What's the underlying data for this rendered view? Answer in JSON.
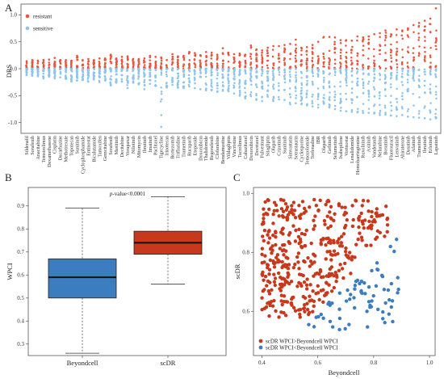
{
  "panels": {
    "a": "A",
    "b": "B",
    "c": "C"
  },
  "chart_data": [
    {
      "panel": "A",
      "type": "scatter",
      "ylabel": "DRS",
      "ylim": [
        -1.2,
        1.2
      ],
      "yticks": [
        -1.0,
        -0.5,
        0.0,
        0.5,
        1.0
      ],
      "legend": {
        "placement": "top-left",
        "entries": [
          {
            "name": "resistant",
            "color": "#e8553c"
          },
          {
            "name": "sensitive",
            "color": "#8cc4ec"
          }
        ]
      },
      "categories": [
        "Sildenafil",
        "Sorafenib",
        "Anacitabine",
        "Temsirolimus",
        "Dexamethasone",
        "Cisplatin",
        "Dacarbazine",
        "Methotrexate",
        "Topotecan",
        "Sunitinib",
        "Cyclophosphamide",
        "Entinostat",
        "Bicalutamide",
        "Tamoxifen",
        "Gemcitabine",
        "Sorafenib",
        "Masitinib",
        "Decitabine",
        "Vorapaxar",
        "Nilotinib",
        "Mitomycin",
        "Ibrutinib",
        "Imatinib",
        "Paclitaxel",
        "Tigecycline",
        "Irinotecan",
        "Bortezomib",
        "Trifluridine",
        "Trametinib",
        "Rucaparib",
        "Etoposide",
        "Doxorubicin",
        "Thalidomide",
        "Regorafenib",
        "Clofarabine",
        "Bendamustine",
        "Vildagliptin",
        "Vincristine",
        "Tacrolimus",
        "Cabazitaxel",
        "Doxorubicin",
        "Docetaxel",
        "Fulvestrant",
        "Sitagliptin",
        "Olaparib",
        "Crizotinib",
        "Sunitinib",
        "Simvastatin",
        "Sotrastaurin",
        "Cyclosporine",
        "Temozolomide",
        "Terfenadine",
        "IBR",
        "Olaparib",
        "Gefitinib",
        "Selumetinib",
        "Ixabepilone",
        "Vorinostat",
        "Lenalidomide",
        "Homoharringtonine",
        "Ruxolitinib",
        "Axitinib",
        "Vandetanib",
        "Nelarabine",
        "Bosutinib",
        "Fluorouracil",
        "Lenvatinib",
        "Abiraterone",
        "Dasatinib",
        "Afatinib",
        "Trametinib",
        "Ibrutinib",
        "Erlotinib",
        "Lapatinib"
      ],
      "series": [
        {
          "name": "resistant",
          "color": "#e8553c",
          "range_max": [
            0.14,
            0.16,
            0.15,
            0.16,
            0.17,
            0.2,
            0.16,
            0.16,
            0.15,
            0.24,
            0.16,
            0.18,
            0.16,
            0.19,
            0.19,
            0.26,
            0.19,
            0.22,
            0.23,
            0.18,
            0.18,
            0.19,
            0.24,
            0.22,
            0.21,
            0.16,
            0.27,
            0.23,
            0.24,
            0.31,
            0.29,
            0.25,
            0.31,
            0.3,
            0.26,
            0.38,
            0.3,
            0.27,
            0.28,
            0.26,
            0.43,
            0.36,
            0.34,
            0.39,
            0.42,
            0.42,
            0.44,
            0.46,
            0.54,
            0.39,
            0.4,
            0.44,
            0.5,
            0.59,
            0.59,
            0.58,
            0.53,
            0.53,
            0.52,
            0.6,
            0.58,
            0.6,
            0.64,
            0.66,
            0.71,
            0.64,
            0.73,
            0.71,
            0.75,
            0.81,
            0.85,
            0.89,
            0.93,
            1.12
          ]
        },
        {
          "name": "sensitive",
          "color": "#8cc4ec",
          "range_min": [
            -0.12,
            -0.13,
            -0.14,
            -0.18,
            -0.15,
            -0.18,
            -0.16,
            -0.19,
            -0.24,
            -0.22,
            -0.21,
            -0.24,
            -0.2,
            -0.25,
            -0.22,
            -0.31,
            -0.26,
            -0.24,
            -0.36,
            -0.26,
            -0.29,
            -0.38,
            -0.28,
            -0.32,
            -1.08,
            -0.35,
            -0.3,
            -0.35,
            -0.36,
            -0.33,
            -0.36,
            -0.38,
            -0.4,
            -0.4,
            -0.43,
            -0.41,
            -0.42,
            -0.46,
            -0.5,
            -0.55,
            -0.51,
            -0.58,
            -0.6,
            -0.52,
            -0.6,
            -0.57,
            -0.58,
            -0.66,
            -0.64,
            -0.66,
            -0.68,
            -0.7,
            -0.72,
            -0.65,
            -0.72,
            -0.75,
            -0.78,
            -0.79,
            -0.8,
            -0.81,
            -0.82,
            -0.82,
            -0.83,
            -0.86,
            -0.85,
            -0.87,
            -0.88,
            -0.86,
            -0.89,
            -0.9,
            -0.91,
            -0.92,
            -0.94,
            -0.92
          ]
        }
      ]
    },
    {
      "panel": "B",
      "type": "box",
      "annotation_prefix": "p",
      "annotation_suffix": "-value<0.0001",
      "ylabel": "WPCI",
      "xlabel": "",
      "ylim": [
        0.25,
        0.98
      ],
      "yticks": [
        0.3,
        0.4,
        0.5,
        0.6,
        0.7,
        0.8,
        0.9
      ],
      "categories": [
        "Beyondcell",
        "scDR"
      ],
      "boxes": [
        {
          "name": "Beyondcell",
          "color": "#3b7dbf",
          "whisker_low": 0.26,
          "q1": 0.5,
          "median": 0.59,
          "q3": 0.67,
          "whisker_high": 0.89
        },
        {
          "name": "scDR",
          "color": "#c8381b",
          "whisker_low": 0.56,
          "q1": 0.69,
          "median": 0.74,
          "q3": 0.79,
          "whisker_high": 0.94
        }
      ]
    },
    {
      "panel": "C",
      "type": "scatter",
      "xlabel": "Beyondcell",
      "ylabel": "scDR",
      "xlim": [
        0.37,
        1.02
      ],
      "ylim": [
        0.45,
        1.02
      ],
      "xticks": [
        0.4,
        0.6,
        0.8,
        1.0
      ],
      "yticks": [
        0.6,
        0.8,
        1.0
      ],
      "legend": {
        "placement": "bottom-left",
        "entries": [
          {
            "name": "scDR WPCI>Beyondcell WPCI",
            "color": "#c8381b"
          },
          {
            "name": "scDR WPCI<Beyondcell WPCI",
            "color": "#3b7dbf"
          }
        ]
      },
      "series": [
        {
          "name": "scDR WPCI>Beyondcell WPCI",
          "color": "#c8381b",
          "count": 420
        },
        {
          "name": "scDR WPCI<Beyondcell WPCI",
          "color": "#3b7dbf",
          "count": 70
        }
      ]
    }
  ]
}
